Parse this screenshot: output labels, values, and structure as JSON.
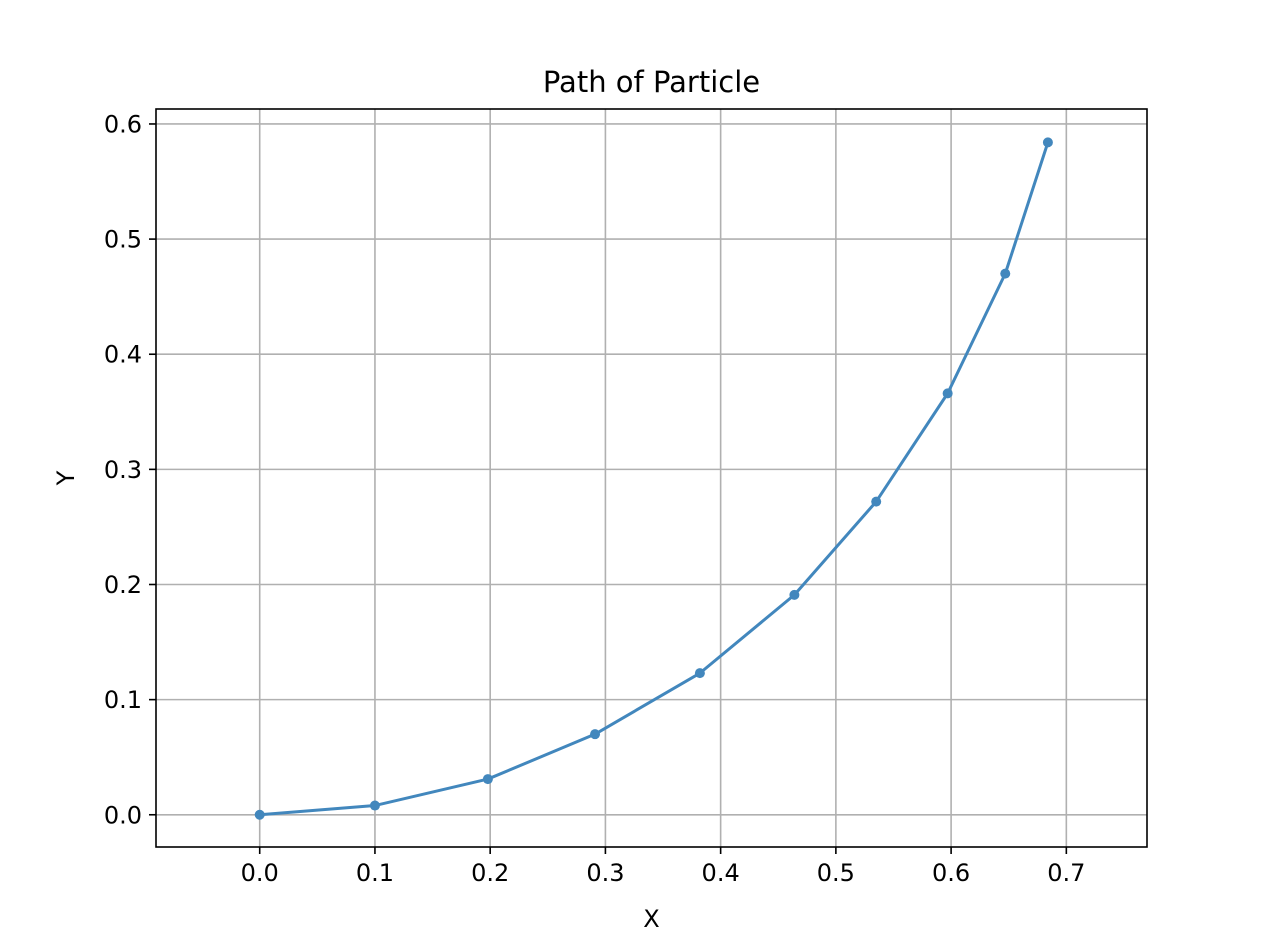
{
  "chart_data": {
    "type": "line",
    "title": "Path of Particle",
    "xlabel": "X",
    "ylabel": "Y",
    "xlim": [
      -0.09,
      0.77
    ],
    "ylim": [
      -0.028,
      0.613
    ],
    "xticks": [
      0.0,
      0.1,
      0.2,
      0.3,
      0.4,
      0.5,
      0.6,
      0.7
    ],
    "yticks": [
      0.0,
      0.1,
      0.2,
      0.3,
      0.4,
      0.5,
      0.6
    ],
    "xtick_labels": [
      "0.0",
      "0.1",
      "0.2",
      "0.3",
      "0.4",
      "0.5",
      "0.6",
      "0.7"
    ],
    "ytick_labels": [
      "0.0",
      "0.1",
      "0.2",
      "0.3",
      "0.4",
      "0.5",
      "0.6"
    ],
    "grid": true,
    "legend": false,
    "series": [
      {
        "color": "#4287bd",
        "marker": "circle",
        "x": [
          0.0,
          0.1,
          0.198,
          0.291,
          0.382,
          0.464,
          0.535,
          0.597,
          0.647,
          0.684
        ],
        "y": [
          0.0,
          0.008,
          0.031,
          0.07,
          0.123,
          0.191,
          0.272,
          0.366,
          0.47,
          0.584
        ]
      }
    ]
  }
}
